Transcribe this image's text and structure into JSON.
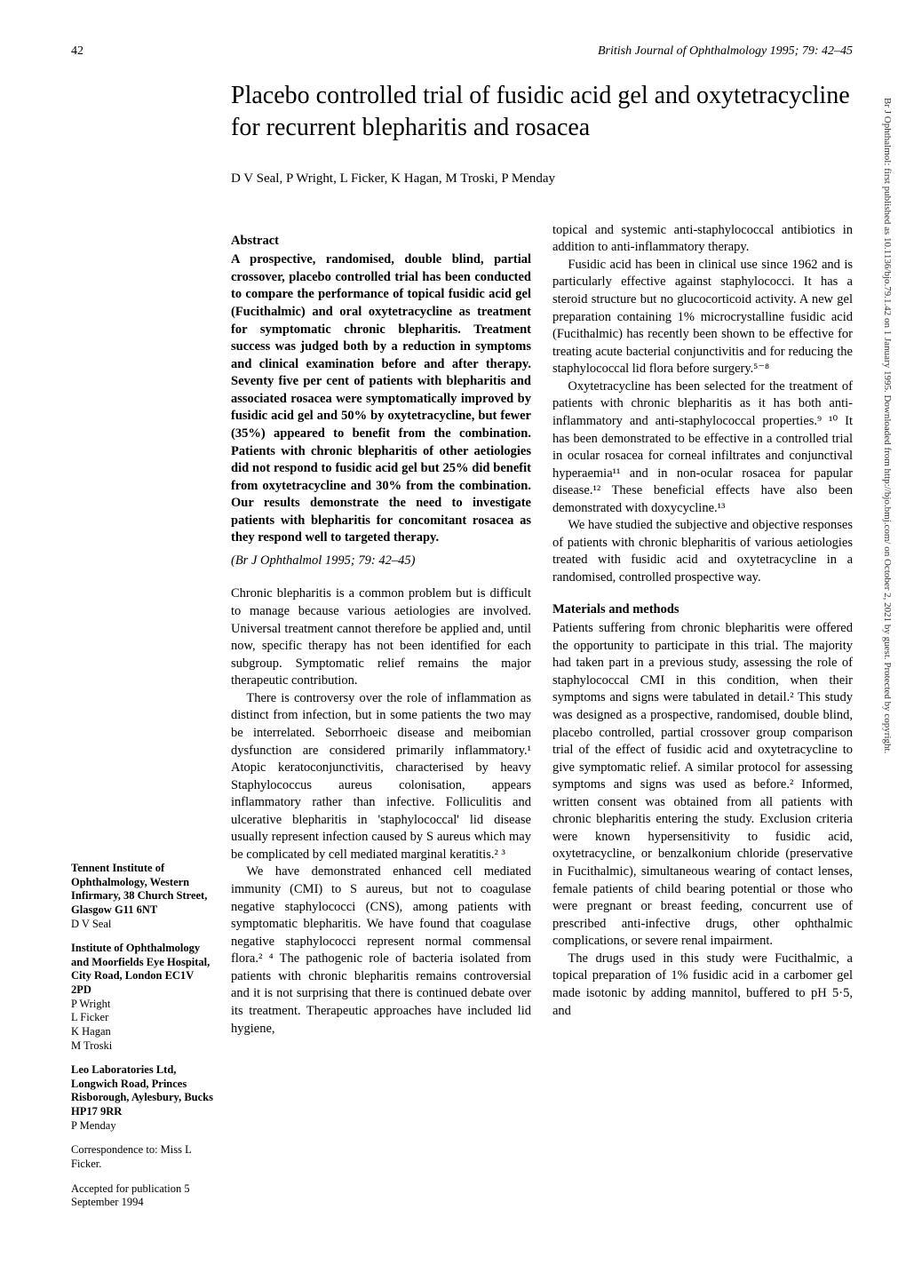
{
  "page_number": "42",
  "running_header": "British Journal of Ophthalmology 1995; 79: 42–45",
  "title": "Placebo controlled trial of fusidic acid gel and oxytetracycline for recurrent blepharitis and rosacea",
  "authors": "D V Seal, P Wright, L Ficker, K Hagan, M Troski, P Menday",
  "abstract_heading": "Abstract",
  "abstract": "A prospective, randomised, double blind, partial crossover, placebo controlled trial has been conducted to compare the performance of topical fusidic acid gel (Fucithalmic) and oral oxytetracycline as treatment for symptomatic chronic blepharitis. Treatment success was judged both by a reduction in symptoms and clinical examination before and after therapy. Seventy five per cent of patients with blepharitis and associated rosacea were symptomatically improved by fusidic acid gel and 50% by oxytetracycline, but fewer (35%) appeared to benefit from the combination. Patients with chronic blepharitis of other aetiologies did not respond to fusidic acid gel but 25% did benefit from oxytetracycline and 30% from the combination. Our results demonstrate the need to investigate patients with blepharitis for concomitant rosacea as they respond well to targeted therapy.",
  "citation": "(Br J Ophthalmol 1995; 79: 42–45)",
  "intro_p1": "Chronic blepharitis is a common problem but is difficult to manage because various aetiologies are involved. Universal treatment cannot therefore be applied and, until now, specific therapy has not been identified for each subgroup. Symptomatic relief remains the major therapeutic contribution.",
  "intro_p2": "There is controversy over the role of inflammation as distinct from infection, but in some patients the two may be interrelated. Seborrhoeic disease and meibomian dysfunction are considered primarily inflammatory.¹ Atopic keratoconjunctivitis, characterised by heavy Staphylococcus aureus colonisation, appears inflammatory rather than infective. Folliculitis and ulcerative blepharitis in 'staphylococcal' lid disease usually represent infection caused by S aureus which may be complicated by cell mediated marginal keratitis.² ³",
  "intro_p3": "We have demonstrated enhanced cell mediated immunity (CMI) to S aureus, but not to coagulase negative staphylococci (CNS), among patients with symptomatic blepharitis. We have found that coagulase negative staphylococci represent normal commensal flora.² ⁴ The pathogenic role of bacteria isolated from patients with chronic blepharitis remains controversial and it is not surprising that there is continued debate over its treatment. Therapeutic approaches have included lid hygiene,",
  "col2_p1": "topical and systemic anti-staphylococcal antibiotics in addition to anti-inflammatory therapy.",
  "col2_p2": "Fusidic acid has been in clinical use since 1962 and is particularly effective against staphylococci. It has a steroid structure but no glucocorticoid activity. A new gel preparation containing 1% microcrystalline fusidic acid (Fucithalmic) has recently been shown to be effective for treating acute bacterial conjunctivitis and for reducing the staphylococcal lid flora before surgery.⁵⁻⁸",
  "col2_p3": "Oxytetracycline has been selected for the treatment of patients with chronic blepharitis as it has both anti-inflammatory and anti-staphylococcal properties.⁹ ¹⁰ It has been demonstrated to be effective in a controlled trial in ocular rosacea for corneal infiltrates and conjunctival hyperaemia¹¹ and in non-ocular rosacea for papular disease.¹² These beneficial effects have also been demonstrated with doxycycline.¹³",
  "col2_p4": "We have studied the subjective and objective responses of patients with chronic blepharitis of various aetiologies treated with fusidic acid and oxytetracycline in a randomised, controlled prospective way.",
  "mm_heading": "Materials and methods",
  "mm_p1": "Patients suffering from chronic blepharitis were offered the opportunity to participate in this trial. The majority had taken part in a previous study, assessing the role of staphylococcal CMI in this condition, when their symptoms and signs were tabulated in detail.² This study was designed as a prospective, randomised, double blind, placebo controlled, partial crossover group comparison trial of the effect of fusidic acid and oxytetracycline to give symptomatic relief. A similar protocol for assessing symptoms and signs was used as before.² Informed, written consent was obtained from all patients with chronic blepharitis entering the study. Exclusion criteria were known hypersensitivity to fusidic acid, oxytetracycline, or benzalkonium chloride (preservative in Fucithalmic), simultaneous wearing of contact lenses, female patients of child bearing potential or those who were pregnant or breast feeding, concurrent use of prescribed anti-infective drugs, other ophthalmic complications, or severe renal impairment.",
  "mm_p2": "The drugs used in this study were Fucithalmic, a topical preparation of 1% fusidic acid in a carbomer gel made isotonic by adding mannitol, buffered to pH 5·5, and",
  "affil1_title": "Tennent Institute of Ophthalmology, Western Infirmary, 38 Church Street, Glasgow G11 6NT",
  "affil1_people": "D V Seal",
  "affil2_title": "Institute of Ophthalmology and Moorfields Eye Hospital, City Road, London EC1V 2PD",
  "affil2_people1": "P Wright",
  "affil2_people2": "L Ficker",
  "affil2_people3": "K Hagan",
  "affil2_people4": "M Troski",
  "affil3_title": "Leo Laboratories Ltd, Longwich Road, Princes Risborough, Aylesbury, Bucks HP17 9RR",
  "affil3_people": "P Menday",
  "correspondence": "Correspondence to: Miss L Ficker.",
  "accepted": "Accepted for publication 5 September 1994",
  "side_watermark": "Br J Ophthalmol: first published as 10.1136/bjo.79.1.42 on 1 January 1995. Downloaded from http://bjo.bmj.com/ on October 2, 2021 by guest. Protected by copyright."
}
